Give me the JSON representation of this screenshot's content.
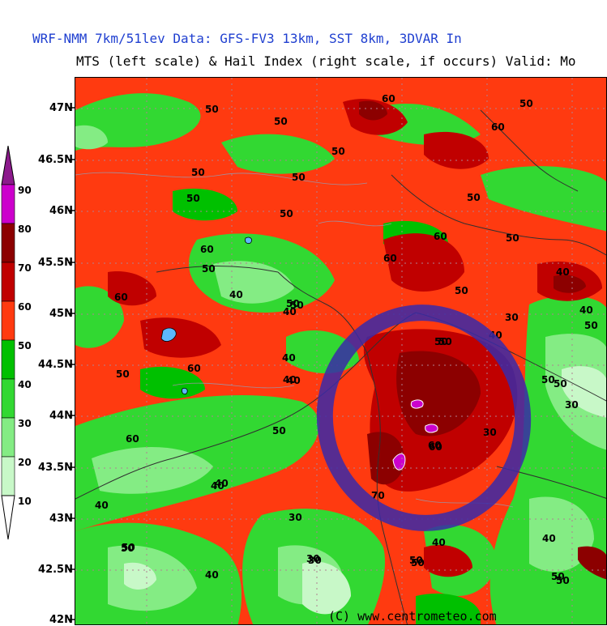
{
  "header": {
    "line1": "WRF-NMM 7km/51lev  Data: GFS-FV3 13km, SST 8km, 3DVAR   In",
    "line2": "MTS (left scale) & Hail Index (right scale, if occurs) Valid: Mo"
  },
  "map": {
    "latitudes": [
      "47N",
      "46.5N",
      "46N",
      "45.5N",
      "45N",
      "44.5N",
      "44N",
      "43.5N",
      "43N",
      "42.5N",
      "42N"
    ],
    "credit": "(C) www.centrometeo.com",
    "colors": {
      "red": "#ff3a10",
      "darkred": "#c00000",
      "maroon": "#8c0000",
      "green_dark": "#00c000",
      "green_mid": "#32d832",
      "green_light": "#84ec84",
      "green_pale": "#c8f8c8",
      "magenta": "#cc00cc",
      "annotation": "#3a2aa8"
    },
    "contour_labels": [
      "50",
      "50",
      "60",
      "50",
      "50",
      "50",
      "50",
      "60",
      "50",
      "50",
      "60",
      "50",
      "60",
      "50",
      "50",
      "40",
      "60",
      "50",
      "40",
      "60",
      "50",
      "40",
      "40",
      "50",
      "40",
      "50",
      "60",
      "40",
      "50",
      "50",
      "30",
      "60",
      "30",
      "50",
      "40",
      "40",
      "40",
      "50",
      "30",
      "40",
      "50",
      "30",
      "60",
      "40",
      "40",
      "50",
      "50",
      "50",
      "50",
      "30",
      "40",
      "70",
      "60",
      "50",
      "30",
      "40",
      "50",
      "50"
    ]
  },
  "colorbar": {
    "ticks": [
      "90",
      "80",
      "70",
      "60",
      "50",
      "40",
      "30",
      "20",
      "10"
    ],
    "colors": [
      "#8c1a8c",
      "#cc00cc",
      "#8c0000",
      "#c00000",
      "#ff3a10",
      "#00c000",
      "#32d832",
      "#84ec84",
      "#c8f8c8",
      "#ffffff"
    ]
  }
}
